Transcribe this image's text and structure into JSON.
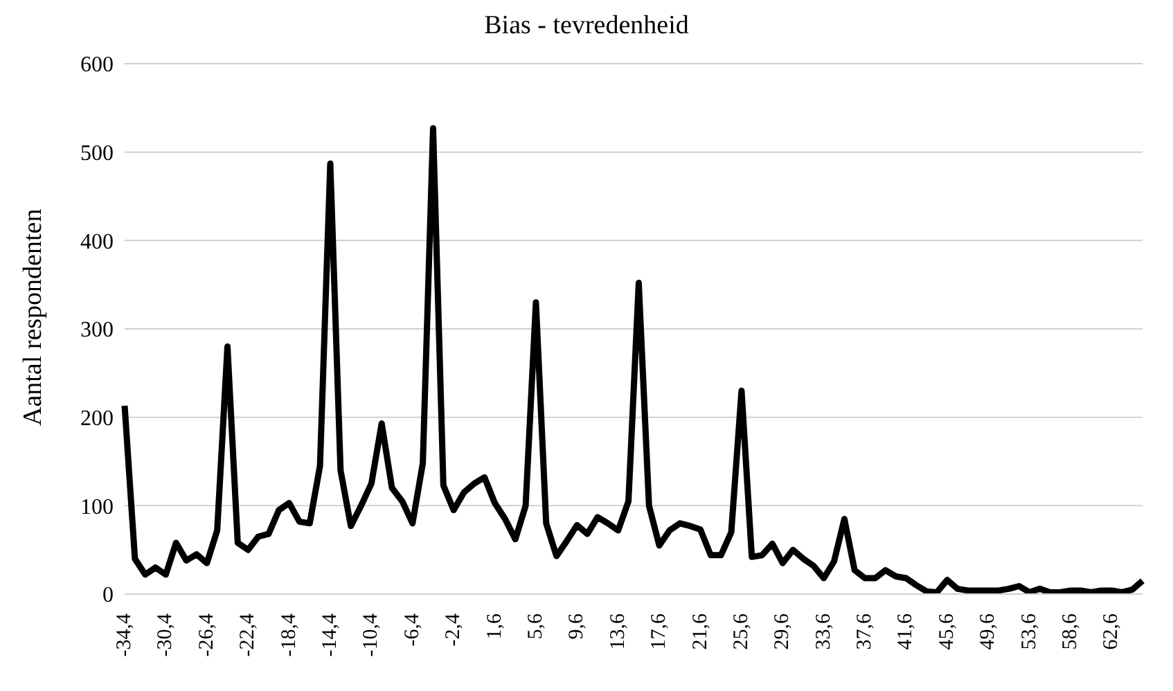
{
  "chart_data": {
    "type": "line",
    "title": "Bias - tevredenheid",
    "ylabel": "Aantal respondenten",
    "categories": [
      "-34,4",
      null,
      null,
      null,
      "-30,4",
      null,
      null,
      null,
      "-26,4",
      null,
      null,
      null,
      "-22,4",
      null,
      null,
      null,
      "-18,4",
      null,
      null,
      null,
      "-14,4",
      null,
      null,
      null,
      "-10,4",
      null,
      null,
      null,
      "-6,4",
      null,
      null,
      null,
      "-2,4",
      null,
      null,
      null,
      "1,6",
      null,
      null,
      null,
      "5,6",
      null,
      null,
      null,
      "9,6",
      null,
      null,
      null,
      "13,6",
      null,
      null,
      null,
      "17,6",
      null,
      null,
      null,
      "21,6",
      null,
      null,
      null,
      "25,6",
      null,
      null,
      null,
      "29,6",
      null,
      null,
      null,
      "33,6",
      null,
      null,
      null,
      "37,6",
      null,
      null,
      null,
      "41,6",
      null,
      null,
      null,
      "45,6",
      null,
      null,
      null,
      "49,6",
      null,
      null,
      null,
      "53,6",
      null,
      null,
      null,
      "58,6",
      null,
      null,
      null,
      "62,6",
      null,
      null,
      null
    ],
    "series": [
      {
        "color": "#000000",
        "values": [
          213,
          40,
          22,
          30,
          22,
          58,
          38,
          45,
          35,
          72,
          280,
          58,
          50,
          65,
          68,
          95,
          103,
          82,
          80,
          145,
          487,
          140,
          77,
          100,
          125,
          193,
          120,
          105,
          80,
          148,
          527,
          123,
          95,
          115,
          125,
          132,
          103,
          85,
          62,
          100,
          330,
          80,
          43,
          60,
          78,
          68,
          87,
          80,
          72,
          105,
          352,
          100,
          55,
          72,
          80,
          77,
          73,
          44,
          44,
          70,
          230,
          42,
          44,
          57,
          35,
          50,
          40,
          32,
          18,
          37,
          85,
          27,
          18,
          18,
          27,
          20,
          18,
          10,
          3,
          2,
          16,
          6,
          4,
          4,
          4,
          4,
          6,
          9,
          2,
          6,
          2,
          2,
          4,
          4,
          2,
          4,
          4,
          2,
          5,
          15
        ]
      }
    ],
    "ylim": [
      0,
      600
    ],
    "yticks": [
      0,
      100,
      200,
      300,
      400,
      500,
      600
    ],
    "grid": "y",
    "legend": false,
    "marker": "none",
    "line_style": "solid"
  }
}
